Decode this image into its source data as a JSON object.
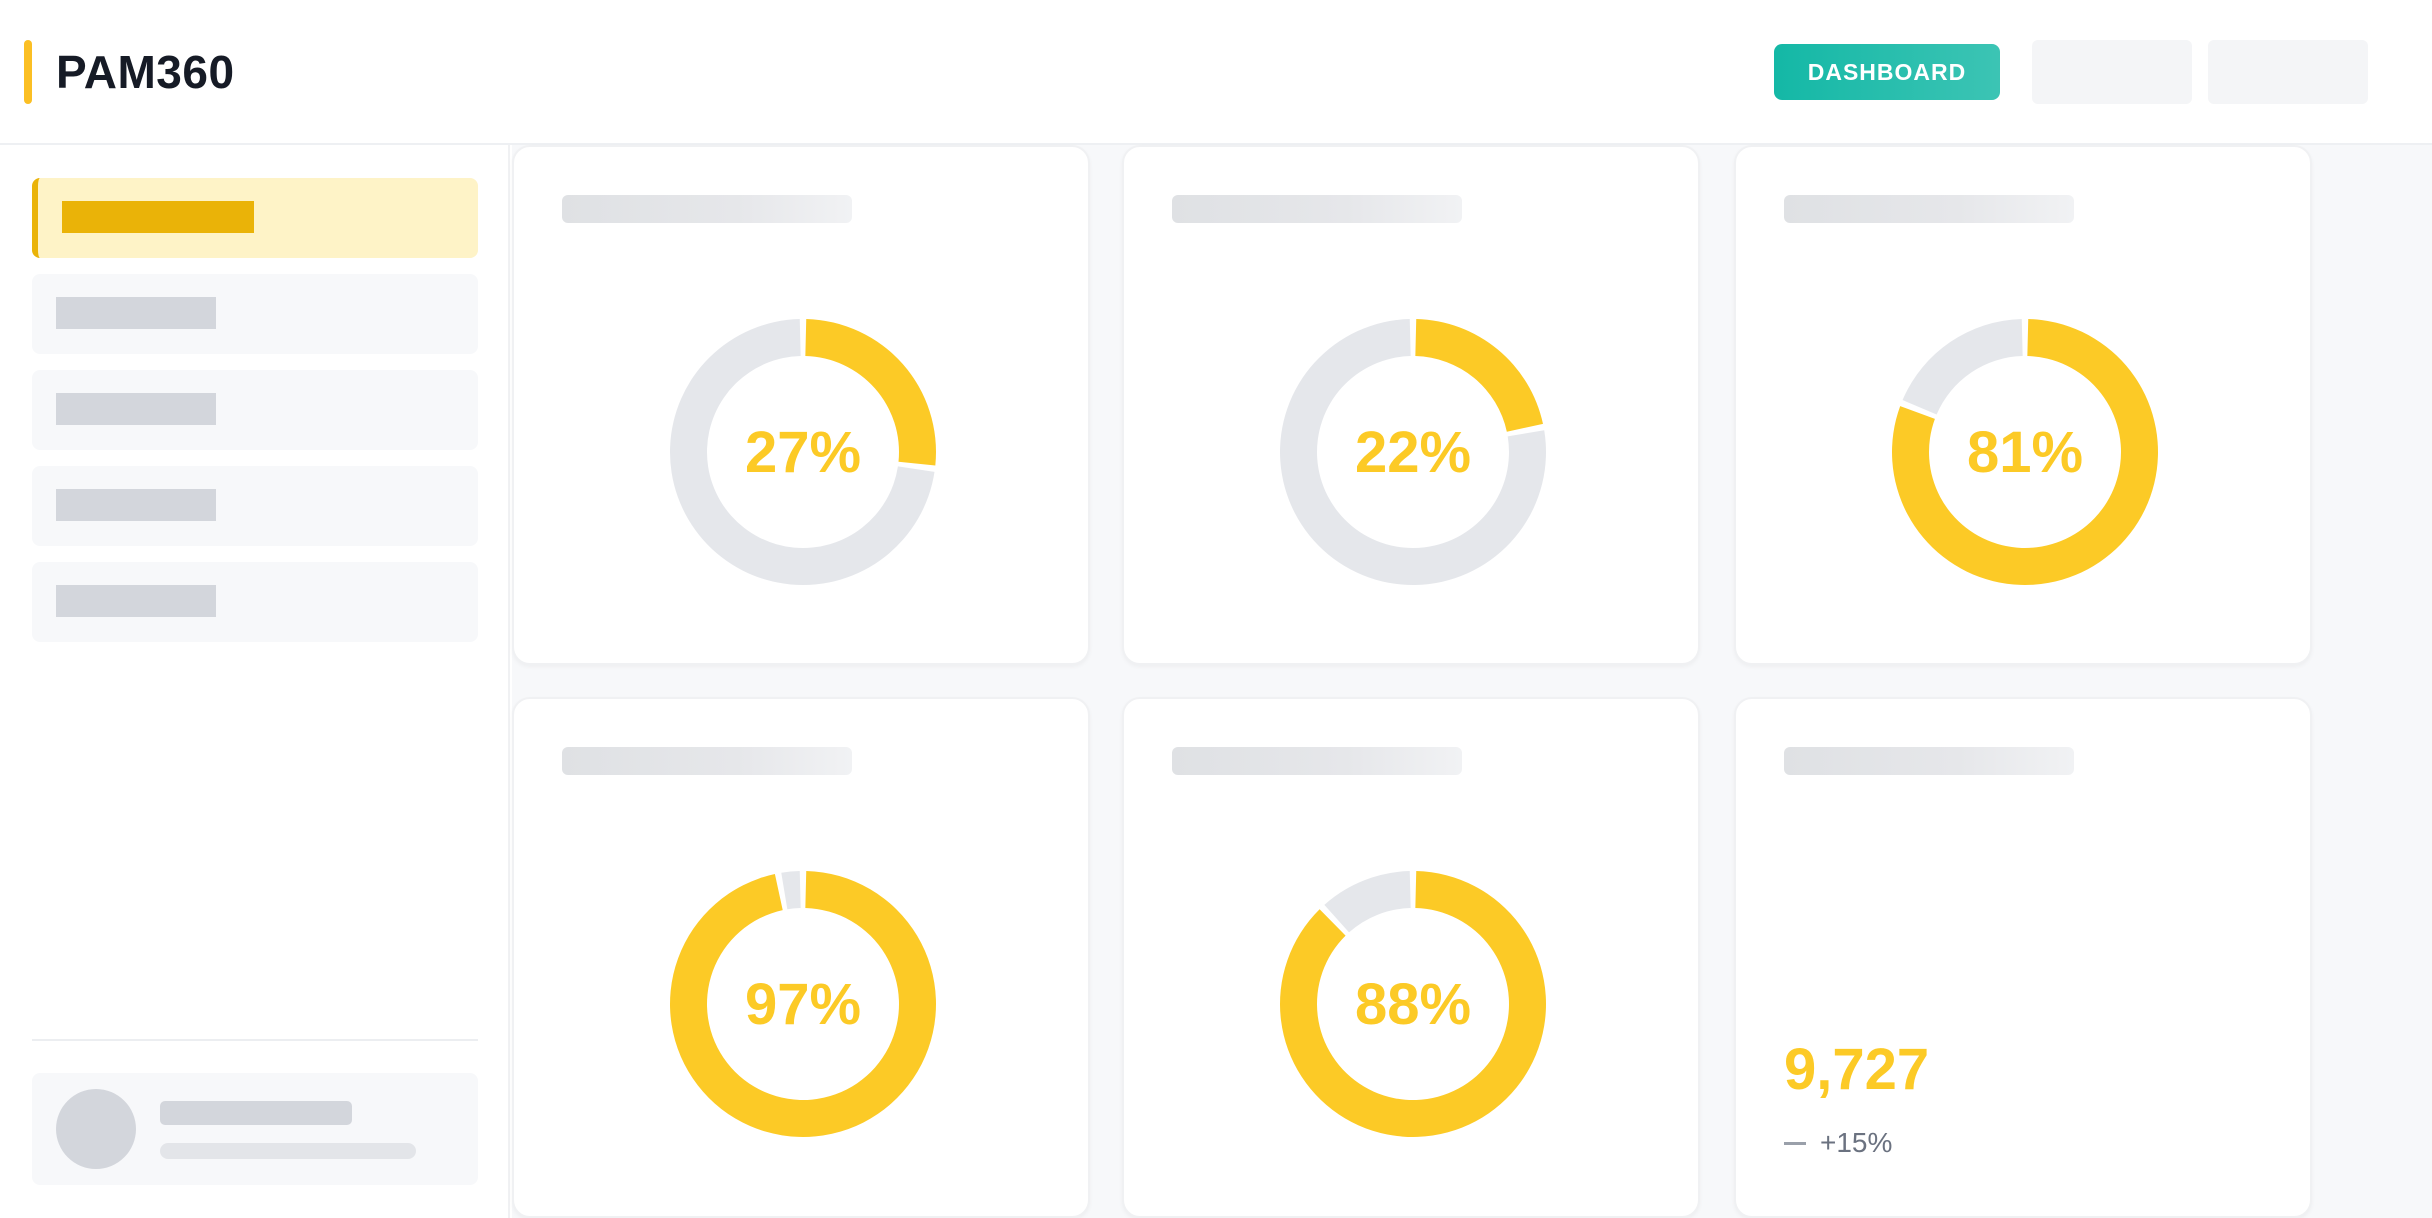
{
  "app": {
    "title": "PAM360",
    "accent_color": "#fbbf24",
    "primary_color": "#14b8a6"
  },
  "header": {
    "dashboard_button": "DASHBOARD"
  },
  "sidebar": {
    "active_index": 0,
    "items_count": 5
  },
  "cards": [
    {
      "kind": "donut",
      "label": "27%",
      "percent": 27
    },
    {
      "kind": "donut",
      "label": "22%",
      "percent": 22
    },
    {
      "kind": "donut",
      "label": "81%",
      "percent": 81
    },
    {
      "kind": "donut",
      "label": "97%",
      "percent": 97
    },
    {
      "kind": "donut",
      "label": "88%",
      "percent": 88
    },
    {
      "kind": "stat",
      "value": "9,727",
      "trend": "+15%",
      "trend_icon": "minus-icon"
    }
  ],
  "colors": {
    "donut_fill": "#fcca26",
    "donut_track": "#e5e7eb",
    "label": "#fcca26",
    "stat_value": "#fcca26"
  }
}
